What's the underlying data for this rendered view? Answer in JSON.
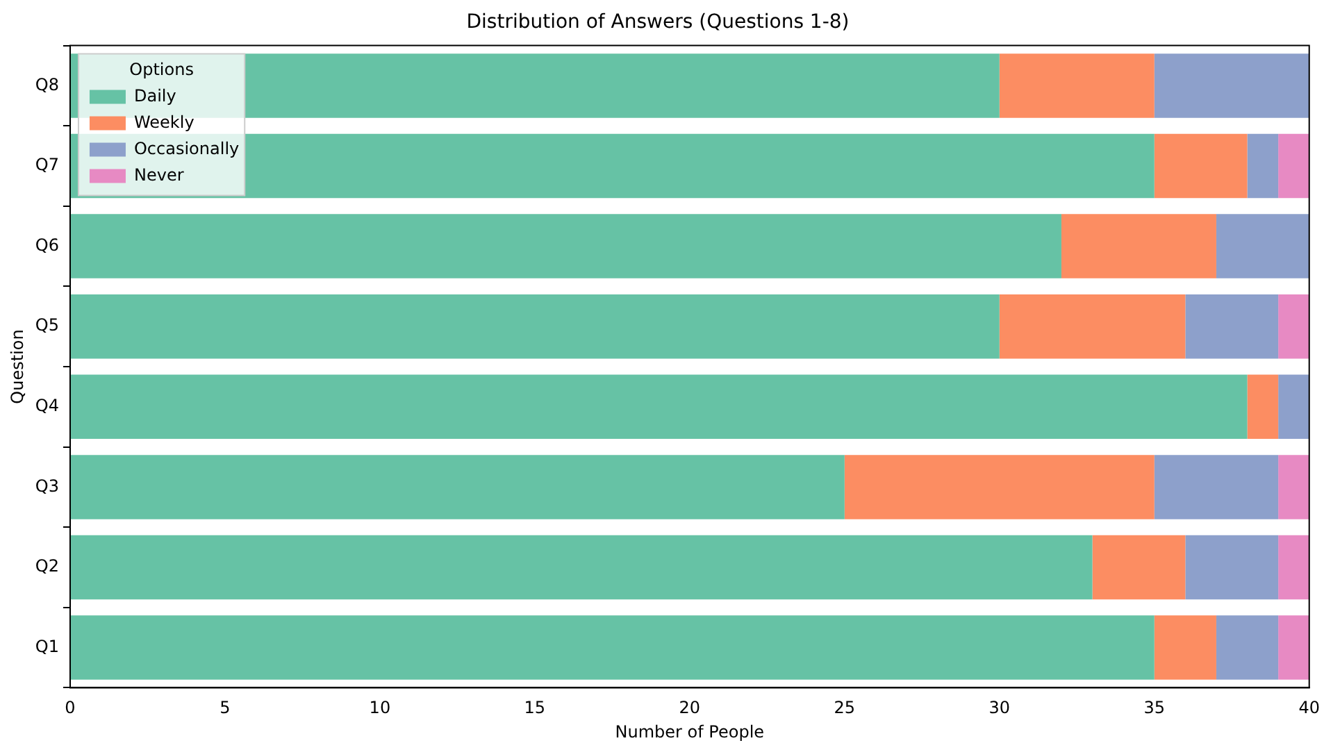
{
  "chart_data": {
    "type": "bar",
    "orientation": "horizontal",
    "stacked": true,
    "title": "Distribution of Answers (Questions 1-8)",
    "xlabel": "Number of People",
    "ylabel": "Question",
    "legend_title": "Options",
    "legend": "top left",
    "grid": false,
    "categories": [
      "Q8",
      "Q7",
      "Q6",
      "Q5",
      "Q4",
      "Q3",
      "Q2",
      "Q1"
    ],
    "xlim": [
      0,
      40
    ],
    "xticks": [
      0,
      5,
      10,
      15,
      20,
      25,
      30,
      35,
      40
    ],
    "series": [
      {
        "name": "Daily",
        "color": "#66c2a5",
        "values": [
          30,
          35,
          32,
          30,
          38,
          25,
          33,
          35
        ]
      },
      {
        "name": "Weekly",
        "color": "#fc8d62",
        "values": [
          5,
          3,
          5,
          6,
          1,
          10,
          3,
          2
        ]
      },
      {
        "name": "Occasionally",
        "color": "#8da0cb",
        "values": [
          5,
          1,
          3,
          3,
          1,
          4,
          3,
          2
        ]
      },
      {
        "name": "Never",
        "color": "#e78ac3",
        "values": [
          0,
          1,
          0,
          1,
          0,
          1,
          1,
          1
        ]
      }
    ]
  }
}
